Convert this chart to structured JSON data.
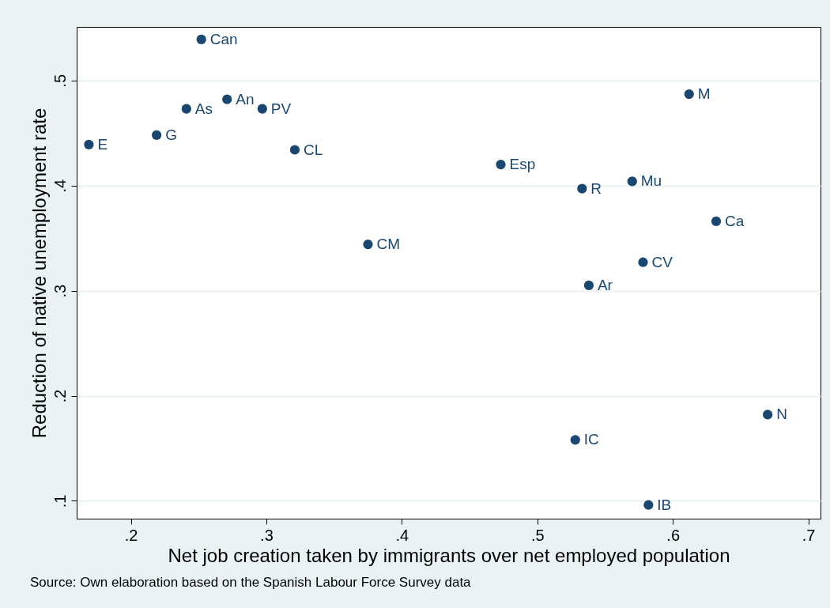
{
  "chart_data": {
    "type": "scatter",
    "xlabel": "Net job creation taken by immigrants over net employed population",
    "ylabel": "Reduction of native unemployment rate",
    "annotations": [
      "Source: Own elaboration based on the Spanish Labour Force Survey data"
    ],
    "series": [
      {
        "color": "#1a476f",
        "x": [
          0.252,
          0.241,
          0.271,
          0.297,
          0.169,
          0.219,
          0.321,
          0.375,
          0.473,
          0.533,
          0.57,
          0.612,
          0.632,
          0.578,
          0.538,
          0.528,
          0.582,
          0.67
        ],
        "values": [
          0.539,
          0.473,
          0.482,
          0.473,
          0.439,
          0.448,
          0.434,
          0.344,
          0.42,
          0.397,
          0.404,
          0.487,
          0.366,
          0.327,
          0.305,
          0.158,
          0.096,
          0.182
        ],
        "value_labels": [
          "Can",
          "As",
          "An",
          "PV",
          "E",
          "G",
          "CL",
          "CM",
          "Esp",
          "R",
          "Mu",
          "M",
          "Ca",
          "CV",
          "Ar",
          "IC",
          "IB",
          "N"
        ]
      }
    ],
    "xlim": [
      0.16,
      0.709
    ],
    "ylim": [
      0.083,
      0.551
    ],
    "xticks": [
      {
        "value": 0.2,
        "label": ".2"
      },
      {
        "value": 0.3,
        "label": ".3"
      },
      {
        "value": 0.4,
        "label": ".4"
      },
      {
        "value": 0.5,
        "label": ".5"
      },
      {
        "value": 0.6,
        "label": ".6"
      },
      {
        "value": 0.7,
        "label": ".7"
      }
    ],
    "yticks": [
      {
        "value": 0.1,
        "label": ".1"
      },
      {
        "value": 0.2,
        "label": ".2"
      },
      {
        "value": 0.3,
        "label": ".3"
      },
      {
        "value": 0.4,
        "label": ".4"
      },
      {
        "value": 0.5,
        "label": ".5"
      }
    ],
    "grid": "y",
    "marker": "circle"
  }
}
